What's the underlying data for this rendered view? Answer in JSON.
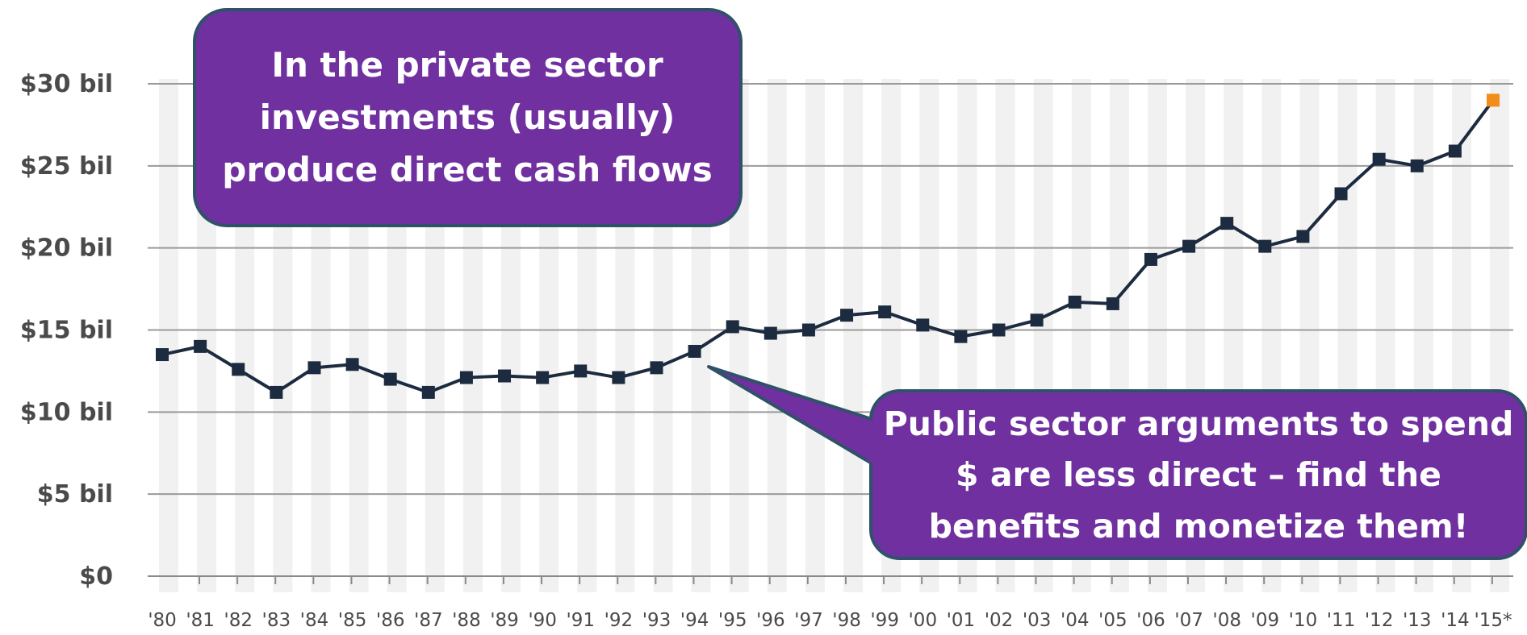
{
  "chart_data": {
    "type": "line",
    "x": [
      "'80",
      "'81",
      "'82",
      "'83",
      "'84",
      "'85",
      "'86",
      "'87",
      "'88",
      "'89",
      "'90",
      "'91",
      "'92",
      "'93",
      "'94",
      "'95",
      "'96",
      "'97",
      "'98",
      "'99",
      "'00",
      "'01",
      "'02",
      "'03",
      "'04",
      "'05",
      "'06",
      "'07",
      "'08",
      "'09",
      "'10",
      "'11",
      "'12",
      "'13",
      "'14",
      "'15*"
    ],
    "series": [
      {
        "values": [
          13.5,
          14.0,
          12.6,
          11.2,
          12.7,
          12.9,
          12.0,
          11.2,
          12.1,
          12.2,
          12.1,
          12.5,
          12.1,
          12.7,
          13.7,
          15.2,
          14.8,
          15.0,
          15.9,
          16.1,
          15.3,
          14.6,
          15.0,
          15.6,
          16.7,
          16.6,
          19.3,
          20.1,
          21.5,
          20.1,
          20.7,
          23.3,
          25.4,
          25.0,
          25.9,
          29.0
        ],
        "color": "#1c2b3f",
        "highlight_last_color": "#f28c1b"
      }
    ],
    "yticks": [
      "$0",
      "$5 bil",
      "$10 bil",
      "$15 bil",
      "$20 bil",
      "$25 bil",
      "$30 bil"
    ],
    "ylim": [
      0,
      30
    ],
    "grid": true,
    "annotations": [
      {
        "lines": [
          "In the private sector",
          "investments (usually)",
          "produce direct cash flows"
        ]
      },
      {
        "lines": [
          "Public sector arguments to spend",
          "$ are less direct – find the",
          "benefits and monetize them!"
        ]
      }
    ]
  },
  "colors": {
    "callout_fill": "#7030a0",
    "callout_border": "#2f5269",
    "stripe": "#f1f1f1",
    "gridline": "#9a9a9a",
    "axis": "#8a8a8a"
  }
}
